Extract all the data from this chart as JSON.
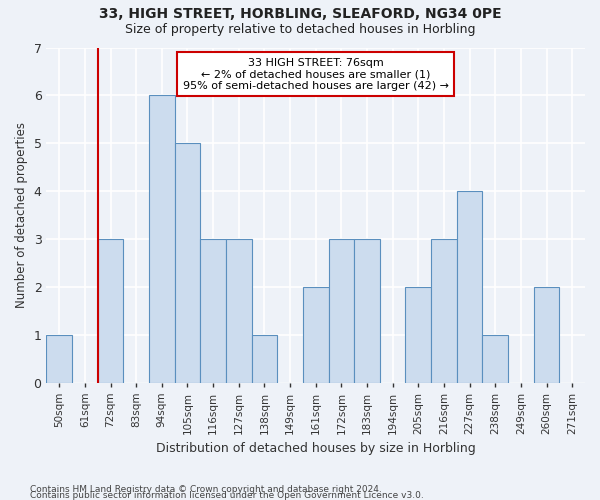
{
  "title1": "33, HIGH STREET, HORBLING, SLEAFORD, NG34 0PE",
  "title2": "Size of property relative to detached houses in Horbling",
  "xlabel": "Distribution of detached houses by size in Horbling",
  "ylabel": "Number of detached properties",
  "categories": [
    "50sqm",
    "61sqm",
    "72sqm",
    "83sqm",
    "94sqm",
    "105sqm",
    "116sqm",
    "127sqm",
    "138sqm",
    "149sqm",
    "161sqm",
    "172sqm",
    "183sqm",
    "194sqm",
    "205sqm",
    "216sqm",
    "227sqm",
    "238sqm",
    "249sqm",
    "260sqm",
    "271sqm"
  ],
  "values": [
    1,
    0,
    3,
    0,
    6,
    5,
    3,
    3,
    1,
    0,
    2,
    3,
    3,
    0,
    2,
    3,
    4,
    1,
    0,
    2,
    0
  ],
  "bar_color": "#ccdcee",
  "bar_edge_color": "#5a8fbe",
  "vline_x_idx": 1.5,
  "annotation_text": "33 HIGH STREET: 76sqm\n← 2% of detached houses are smaller (1)\n95% of semi-detached houses are larger (42) →",
  "annotation_box_color": "#ffffff",
  "annotation_box_edge": "#cc0000",
  "ylim": [
    0,
    7
  ],
  "yticks": [
    0,
    1,
    2,
    3,
    4,
    5,
    6,
    7
  ],
  "footnote1": "Contains HM Land Registry data © Crown copyright and database right 2024.",
  "footnote2": "Contains public sector information licensed under the Open Government Licence v3.0.",
  "bg_color": "#eef2f8",
  "grid_color": "#ffffff",
  "vline_color": "#cc0000"
}
